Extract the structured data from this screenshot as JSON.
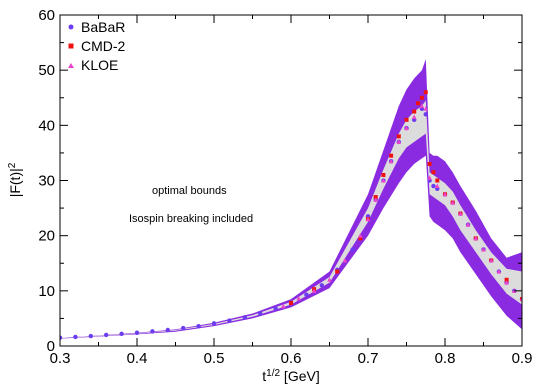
{
  "chart_data": {
    "type": "line",
    "xlabel_base": "t",
    "xlabel_exp": "1/2",
    "xlabel_unit": " [GeV]",
    "ylabel_base": "|F(t)|",
    "ylabel_exp": "2",
    "xlim": [
      0.3,
      0.9
    ],
    "ylim": [
      0,
      60
    ],
    "xticks": [
      0.3,
      0.4,
      0.5,
      0.6,
      0.7,
      0.8,
      0.9
    ],
    "xtick_labels": [
      "0.3",
      "0.4",
      "0.5",
      "0.6",
      "0.7",
      "0.8",
      "0.9"
    ],
    "yticks": [
      0,
      10,
      20,
      30,
      40,
      50,
      60
    ],
    "ytick_labels": [
      "0",
      "10",
      "20",
      "30",
      "40",
      "50",
      "60"
    ],
    "grid": false,
    "legend_position": "top-left",
    "annotations": [
      "optimal bounds",
      "Isospin breaking included"
    ],
    "colors": {
      "outer_band": "#8a2be2",
      "inner_band": "#dcdcdc",
      "babar": "#6a3df0",
      "cmd2": "#ee1111",
      "kloe": "#ee44cc"
    },
    "bands": {
      "x": [
        0.3,
        0.35,
        0.4,
        0.45,
        0.5,
        0.55,
        0.6,
        0.65,
        0.7,
        0.72,
        0.74,
        0.75,
        0.76,
        0.77,
        0.775,
        0.78,
        0.785,
        0.79,
        0.8,
        0.81,
        0.82,
        0.84,
        0.86,
        0.88,
        0.9
      ],
      "outer_upper": [
        1.5,
        1.9,
        2.4,
        3.0,
        4.2,
        5.9,
        8.5,
        13.5,
        27.5,
        35.5,
        43.5,
        46.5,
        48.5,
        50.0,
        52.0,
        35.0,
        34.5,
        34.5,
        33.5,
        31.5,
        29.0,
        24.5,
        19.5,
        16.0,
        17.0
      ],
      "inner_upper": [
        1.5,
        1.85,
        2.3,
        2.9,
        4.0,
        5.6,
        8.0,
        12.5,
        25.0,
        32.0,
        38.5,
        41.0,
        42.5,
        43.5,
        44.5,
        31.5,
        31.0,
        30.5,
        29.5,
        28.0,
        25.5,
        21.0,
        17.0,
        14.0,
        13.5
      ],
      "inner_lower": [
        1.4,
        1.75,
        2.2,
        2.75,
        3.8,
        5.3,
        7.5,
        11.5,
        22.5,
        28.5,
        34.0,
        36.0,
        37.0,
        38.0,
        38.5,
        27.5,
        27.0,
        26.5,
        25.5,
        23.5,
        21.0,
        17.0,
        13.0,
        9.5,
        7.5
      ],
      "outer_lower": [
        1.35,
        1.7,
        2.1,
        2.6,
        3.6,
        5.0,
        7.0,
        10.5,
        20.0,
        25.0,
        29.5,
        31.5,
        33.0,
        34.0,
        34.5,
        23.5,
        22.5,
        22.0,
        21.0,
        19.5,
        17.0,
        13.0,
        9.0,
        5.5,
        3.0
      ]
    },
    "series": [
      {
        "name": "BaBaR",
        "marker": "circle",
        "x": [
          0.3,
          0.32,
          0.34,
          0.36,
          0.38,
          0.4,
          0.42,
          0.44,
          0.46,
          0.48,
          0.5,
          0.52,
          0.54,
          0.56,
          0.58,
          0.6,
          0.62,
          0.64,
          0.66,
          0.68,
          0.7,
          0.71,
          0.72,
          0.73,
          0.74,
          0.75,
          0.76,
          0.77,
          0.775,
          0.78,
          0.785,
          0.79,
          0.8,
          0.81,
          0.82,
          0.83,
          0.84,
          0.85,
          0.86,
          0.87,
          0.88,
          0.89,
          0.9
        ],
        "y": [
          1.5,
          1.65,
          1.8,
          2.0,
          2.2,
          2.4,
          2.65,
          2.9,
          3.25,
          3.6,
          4.1,
          4.6,
          5.2,
          5.9,
          6.8,
          7.9,
          9.3,
          11.0,
          13.8,
          17.5,
          23.5,
          26.5,
          30.0,
          33.5,
          37.0,
          39.5,
          41.0,
          43.0,
          42.0,
          30.0,
          29.0,
          28.5,
          27.5,
          26.0,
          24.0,
          22.0,
          19.5,
          17.5,
          15.5,
          13.5,
          11.5,
          10.0,
          8.5
        ]
      },
      {
        "name": "CMD-2",
        "marker": "square",
        "x": [
          0.6,
          0.63,
          0.66,
          0.69,
          0.7,
          0.71,
          0.72,
          0.73,
          0.74,
          0.75,
          0.76,
          0.765,
          0.77,
          0.775,
          0.78,
          0.785,
          0.79,
          0.8,
          0.81,
          0.82,
          0.84,
          0.86,
          0.88,
          0.9
        ],
        "y": [
          7.8,
          10.3,
          13.5,
          19.5,
          23.0,
          27.0,
          31.0,
          34.5,
          38.0,
          41.0,
          42.5,
          44.0,
          45.0,
          46.0,
          33.0,
          31.5,
          30.0,
          27.5,
          26.0,
          24.0,
          19.5,
          15.5,
          12.0,
          8.5
        ]
      },
      {
        "name": "KLOE",
        "marker": "triangle",
        "x": [
          0.59,
          0.61,
          0.63,
          0.65,
          0.67,
          0.69,
          0.7,
          0.71,
          0.72,
          0.73,
          0.74,
          0.75,
          0.76,
          0.77,
          0.775,
          0.78,
          0.79,
          0.8,
          0.81,
          0.82,
          0.83,
          0.84,
          0.85,
          0.86,
          0.87,
          0.88,
          0.89,
          0.9
        ],
        "y": [
          7.2,
          8.6,
          10.0,
          12.0,
          15.5,
          20.0,
          23.0,
          26.5,
          30.0,
          33.5,
          37.0,
          39.5,
          41.5,
          43.5,
          43.0,
          30.5,
          29.0,
          27.5,
          26.0,
          24.0,
          22.0,
          19.5,
          17.5,
          15.5,
          13.5,
          11.5,
          10.0,
          8.5
        ]
      }
    ]
  }
}
